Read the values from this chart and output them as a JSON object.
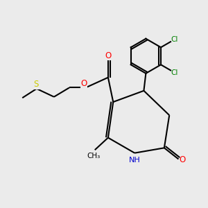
{
  "background_color": "#ebebeb",
  "line_color": "#000000",
  "bond_width": 1.5,
  "atom_colors": {
    "O": "#ff0000",
    "N": "#0000cc",
    "S": "#cccc00",
    "Cl": "#008000",
    "C": "#000000",
    "H": "#000000"
  },
  "figsize": [
    3.0,
    3.0
  ],
  "dpi": 100
}
